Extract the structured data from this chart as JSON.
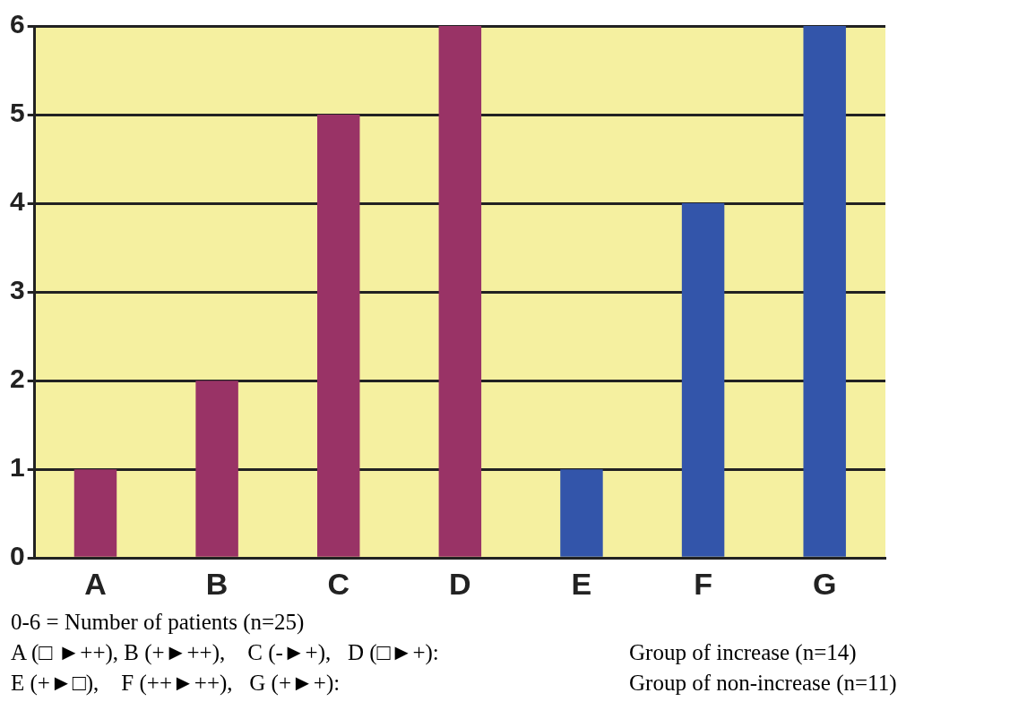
{
  "chart_data": {
    "type": "bar",
    "categories": [
      "A",
      "B",
      "C",
      "D",
      "E",
      "F",
      "G"
    ],
    "values": [
      1,
      2,
      5,
      6,
      1,
      4,
      6
    ],
    "colors": [
      "#993366",
      "#993366",
      "#993366",
      "#993366",
      "#3355aa",
      "#3355aa",
      "#3355aa"
    ],
    "ylim": [
      0,
      6
    ],
    "yticks": [
      0,
      1,
      2,
      3,
      4,
      5,
      6
    ],
    "grid": "y",
    "legend": false,
    "annotations": [
      "0-6 = Number of patients (n=25)",
      "A (□ ►++), B (+►++),    C (-►+),   D (□►+):",
      "Group of increase (n=14)",
      "E (+►□),    F (++►++),   G (+►+):",
      "Group of non-increase (n=11)"
    ]
  }
}
